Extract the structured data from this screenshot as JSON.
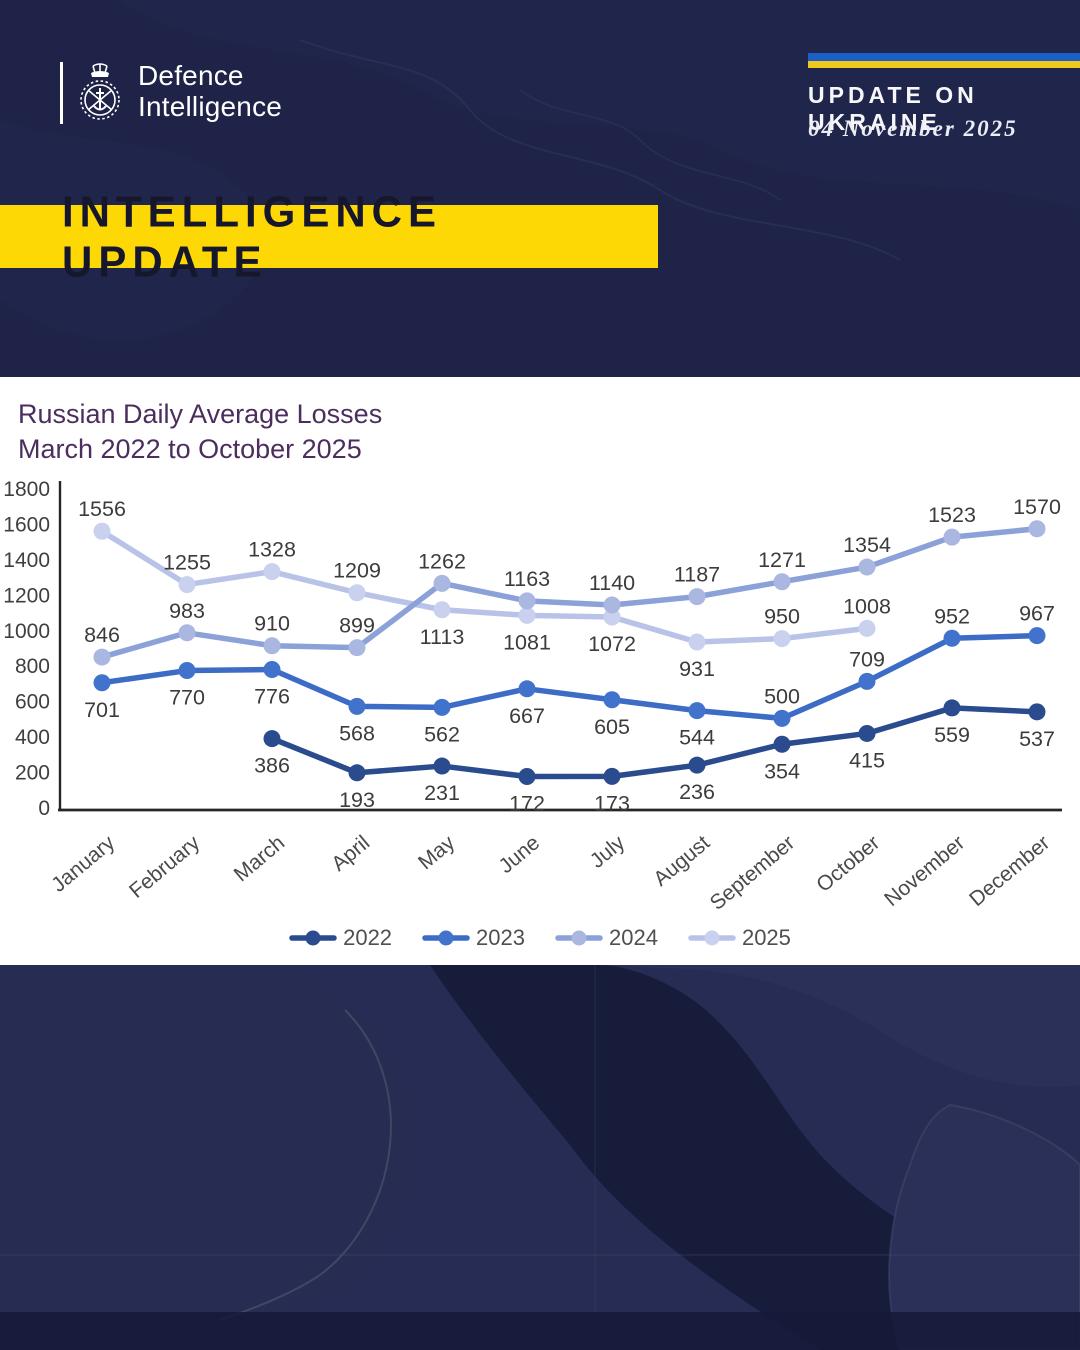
{
  "header": {
    "logo_line1": "Defence",
    "logo_line2": "Intelligence",
    "update_label": "UPDATE ON UKRAINE",
    "date": "04 November 2025",
    "flag_blue": "#1c5fc7",
    "flag_yellow": "#eec81c"
  },
  "banner": {
    "text": "INTELLIGENCE UPDATE",
    "bg": "#fdd804"
  },
  "chart_data": {
    "type": "line",
    "title": "Russian Daily Average Losses",
    "subtitle": "March 2022 to October 2025",
    "categories": [
      "January",
      "February",
      "March",
      "April",
      "May",
      "June",
      "July",
      "August",
      "September",
      "October",
      "November",
      "December"
    ],
    "ylim": [
      0,
      1800
    ],
    "ytick_step": 200,
    "grid": false,
    "legend_position": "bottom",
    "axis_color": "#262626",
    "tick_label_color": "#3f3f3f",
    "data_label_color": "#3c3c3c",
    "series": [
      {
        "name": "2022",
        "color": "#2a4b8d",
        "marker_color": "#2a4b8d",
        "values": [
          null,
          null,
          386,
          193,
          231,
          172,
          173,
          236,
          354,
          415,
          559,
          537
        ],
        "label_side": [
          "",
          "",
          "below",
          "below",
          "below",
          "below",
          "below",
          "below",
          "below",
          "below",
          "below",
          "below"
        ]
      },
      {
        "name": "2023",
        "color": "#3c6cc5",
        "marker_color": "#4173cd",
        "values": [
          701,
          770,
          776,
          568,
          562,
          667,
          605,
          544,
          500,
          709,
          952,
          967
        ],
        "label_side": [
          "below",
          "below",
          "below",
          "below",
          "below",
          "below",
          "below",
          "below",
          "above",
          "above",
          "above",
          "above"
        ]
      },
      {
        "name": "2024",
        "color": "#8ba1d7",
        "marker_color": "#a9b7e1",
        "values": [
          846,
          983,
          910,
          899,
          1262,
          1163,
          1140,
          1187,
          1271,
          1354,
          1523,
          1570
        ],
        "label_side": [
          "above",
          "above",
          "above",
          "above",
          "above",
          "above",
          "above",
          "above",
          "above",
          "above",
          "above",
          "above"
        ]
      },
      {
        "name": "2025",
        "color": "#b8c3e7",
        "marker_color": "#c9d1ee",
        "values": [
          1556,
          1255,
          1328,
          1209,
          1113,
          1081,
          1072,
          931,
          950,
          1008,
          null,
          null
        ],
        "label_side": [
          "above",
          "above",
          "above",
          "above",
          "below",
          "below",
          "below",
          "below",
          "above",
          "above",
          "",
          ""
        ]
      }
    ]
  }
}
